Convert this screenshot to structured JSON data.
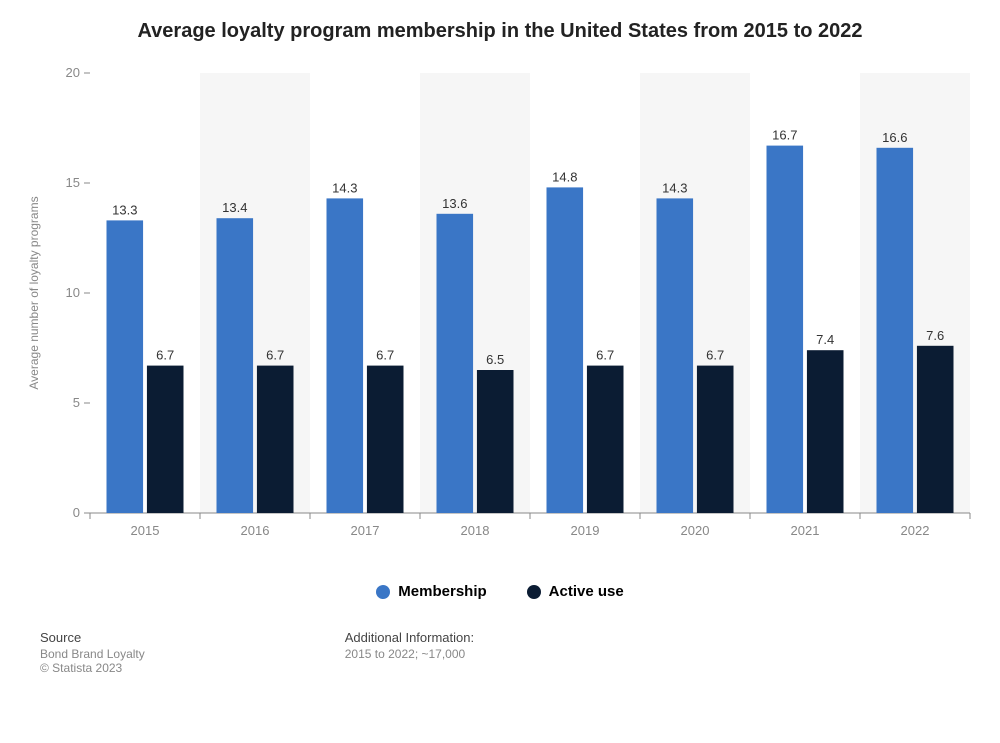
{
  "title": "Average loyalty program membership in the United States from 2015 to 2022",
  "chart": {
    "type": "bar",
    "ylabel": "Average number of loyalty programs",
    "ylim": [
      0,
      20
    ],
    "ytick_step": 5,
    "background_color": "#ffffff",
    "alt_band_color": "#f6f6f6",
    "grid_color": "#000000",
    "axis_color": "#888888",
    "tick_label_color": "#888888",
    "tick_label_fontsize": 13,
    "value_label_color": "#333333",
    "value_label_fontsize": 13,
    "ylabel_color": "#888888",
    "ylabel_fontsize": 12,
    "title_fontsize": 20,
    "title_color": "#222222",
    "bar_group_gap_ratio": 0.15,
    "bar_inner_gap_ratio": 0.05,
    "categories": [
      "2015",
      "2016",
      "2017",
      "2018",
      "2019",
      "2020",
      "2021",
      "2022"
    ],
    "series": [
      {
        "name": "Membership",
        "color": "#3a76c6",
        "values": [
          13.3,
          13.4,
          14.3,
          13.6,
          14.8,
          14.3,
          16.7,
          16.6
        ]
      },
      {
        "name": "Active use",
        "color": "#0b1c33",
        "values": [
          6.7,
          6.7,
          6.7,
          6.5,
          6.7,
          6.7,
          7.4,
          7.6
        ]
      }
    ]
  },
  "legend": [
    {
      "label": "Membership",
      "color": "#3a76c6"
    },
    {
      "label": "Active use",
      "color": "#0b1c33"
    }
  ],
  "footer": {
    "source_heading": "Source",
    "source_name": "Bond Brand Loyalty",
    "copyright": "© Statista 2023",
    "info_heading": "Additional Information:",
    "info_text": "2015 to 2022; ~17,000",
    "heading_fontsize": 13,
    "sub_fontsize": 12
  }
}
